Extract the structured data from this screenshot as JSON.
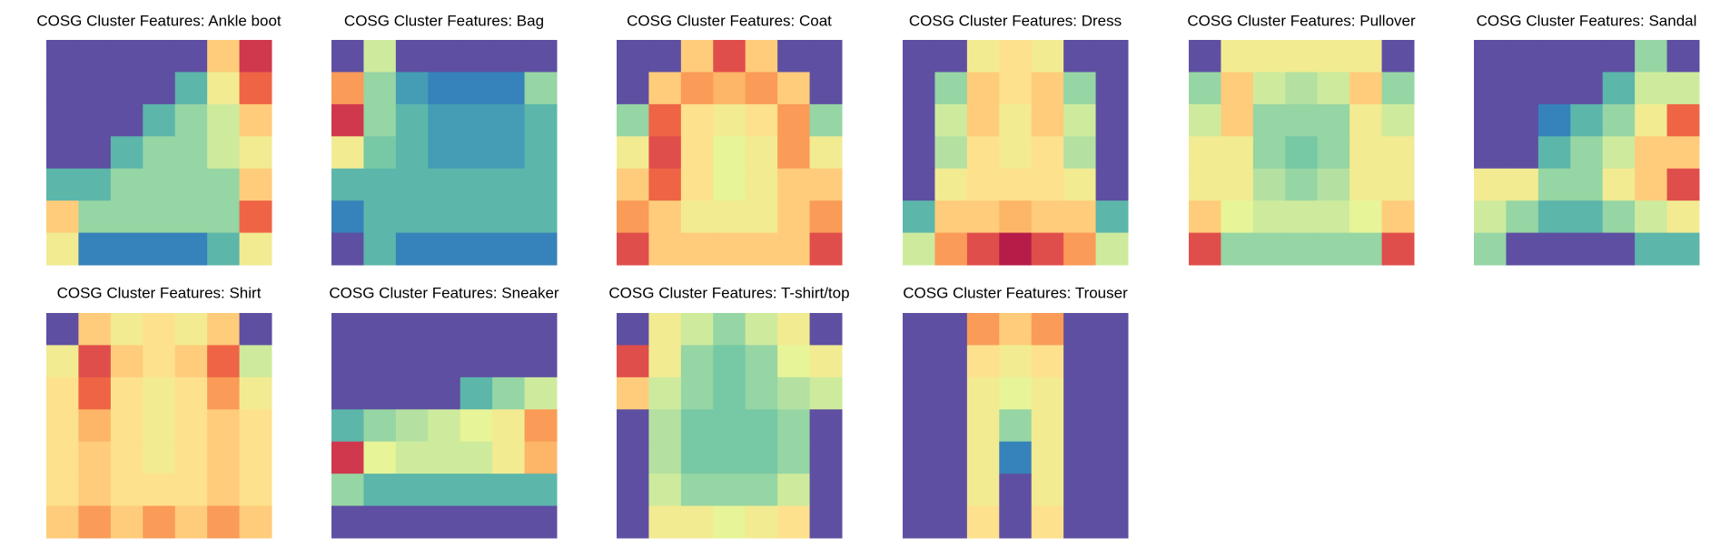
{
  "chart_data": [
    {
      "type": "heatmap",
      "title": "COSG Cluster Features: Ankle boot",
      "zlim": [
        0,
        1
      ],
      "colormap": [
        "#5e4fa2",
        "#3288bd",
        "#66c2a5",
        "#abdda4",
        "#e6f598",
        "#fee08b",
        "#fdae61",
        "#f46d43",
        "#d53e4f",
        "#9e0142"
      ],
      "z": [
        [
          0,
          0,
          0,
          0,
          0,
          0.6,
          0.9
        ],
        [
          0,
          0,
          0,
          0,
          0.2,
          0.5,
          0.8
        ],
        [
          0,
          0,
          0,
          0.2,
          0.3,
          0.4,
          0.6
        ],
        [
          0,
          0,
          0.2,
          0.3,
          0.3,
          0.4,
          0.5
        ],
        [
          0.2,
          0.2,
          0.3,
          0.3,
          0.3,
          0.3,
          0.6
        ],
        [
          0.6,
          0.3,
          0.3,
          0.3,
          0.3,
          0.3,
          0.8
        ],
        [
          0.5,
          0.1,
          0.1,
          0.1,
          0.1,
          0.2,
          0.5
        ]
      ]
    },
    {
      "type": "heatmap",
      "title": "COSG Cluster Features: Bag",
      "zlim": [
        0,
        1
      ],
      "colormap": [
        "#5e4fa2",
        "#3288bd",
        "#66c2a5",
        "#abdda4",
        "#e6f598",
        "#fee08b",
        "#fdae61",
        "#f46d43",
        "#d53e4f",
        "#9e0142"
      ],
      "z": [
        [
          0,
          0.4,
          0,
          0,
          0,
          0,
          0
        ],
        [
          0.7,
          0.3,
          0.15,
          0.1,
          0.1,
          0.1,
          0.3
        ],
        [
          0.9,
          0.3,
          0.2,
          0.15,
          0.15,
          0.15,
          0.2
        ],
        [
          0.5,
          0.25,
          0.2,
          0.15,
          0.15,
          0.15,
          0.2
        ],
        [
          0.2,
          0.2,
          0.2,
          0.2,
          0.2,
          0.2,
          0.2
        ],
        [
          0.1,
          0.2,
          0.2,
          0.2,
          0.2,
          0.2,
          0.2
        ],
        [
          0,
          0.2,
          0.1,
          0.1,
          0.1,
          0.1,
          0.1
        ]
      ]
    },
    {
      "type": "heatmap",
      "title": "COSG Cluster Features: Coat",
      "zlim": [
        0,
        1
      ],
      "colormap": [
        "#5e4fa2",
        "#3288bd",
        "#66c2a5",
        "#abdda4",
        "#e6f598",
        "#fee08b",
        "#fdae61",
        "#f46d43",
        "#d53e4f",
        "#9e0142"
      ],
      "z": [
        [
          0,
          0,
          0.6,
          0.85,
          0.6,
          0,
          0
        ],
        [
          0,
          0.6,
          0.7,
          0.65,
          0.7,
          0.6,
          0
        ],
        [
          0.3,
          0.8,
          0.55,
          0.5,
          0.55,
          0.7,
          0.3
        ],
        [
          0.5,
          0.85,
          0.55,
          0.45,
          0.5,
          0.7,
          0.5
        ],
        [
          0.6,
          0.8,
          0.55,
          0.45,
          0.5,
          0.6,
          0.6
        ],
        [
          0.7,
          0.6,
          0.5,
          0.5,
          0.5,
          0.6,
          0.7
        ],
        [
          0.85,
          0.6,
          0.6,
          0.6,
          0.6,
          0.6,
          0.85
        ]
      ]
    },
    {
      "type": "heatmap",
      "title": "COSG Cluster Features: Dress",
      "zlim": [
        0,
        1
      ],
      "colormap": [
        "#5e4fa2",
        "#3288bd",
        "#66c2a5",
        "#abdda4",
        "#e6f598",
        "#fee08b",
        "#fdae61",
        "#f46d43",
        "#d53e4f",
        "#9e0142"
      ],
      "z": [
        [
          0,
          0,
          0.5,
          0.55,
          0.5,
          0,
          0
        ],
        [
          0,
          0.3,
          0.6,
          0.55,
          0.6,
          0.3,
          0
        ],
        [
          0,
          0.4,
          0.6,
          0.5,
          0.6,
          0.4,
          0
        ],
        [
          0,
          0.35,
          0.55,
          0.5,
          0.55,
          0.35,
          0
        ],
        [
          0,
          0.5,
          0.55,
          0.55,
          0.55,
          0.5,
          0
        ],
        [
          0.2,
          0.6,
          0.6,
          0.65,
          0.6,
          0.6,
          0.2
        ],
        [
          0.4,
          0.7,
          0.85,
          0.95,
          0.85,
          0.7,
          0.4
        ]
      ]
    },
    {
      "type": "heatmap",
      "title": "COSG Cluster Features: Pullover",
      "zlim": [
        0,
        1
      ],
      "colormap": [
        "#5e4fa2",
        "#3288bd",
        "#66c2a5",
        "#abdda4",
        "#e6f598",
        "#fee08b",
        "#fdae61",
        "#f46d43",
        "#d53e4f",
        "#9e0142"
      ],
      "z": [
        [
          0,
          0.5,
          0.5,
          0.5,
          0.5,
          0.5,
          0
        ],
        [
          0.3,
          0.6,
          0.4,
          0.35,
          0.4,
          0.6,
          0.3
        ],
        [
          0.4,
          0.6,
          0.3,
          0.3,
          0.3,
          0.5,
          0.4
        ],
        [
          0.5,
          0.5,
          0.3,
          0.25,
          0.3,
          0.5,
          0.5
        ],
        [
          0.5,
          0.5,
          0.35,
          0.3,
          0.35,
          0.5,
          0.5
        ],
        [
          0.6,
          0.45,
          0.4,
          0.4,
          0.4,
          0.45,
          0.6
        ],
        [
          0.85,
          0.3,
          0.3,
          0.3,
          0.3,
          0.3,
          0.85
        ]
      ]
    },
    {
      "type": "heatmap",
      "title": "COSG Cluster Features: Sandal",
      "zlim": [
        0,
        1
      ],
      "colormap": [
        "#5e4fa2",
        "#3288bd",
        "#66c2a5",
        "#abdda4",
        "#e6f598",
        "#fee08b",
        "#fdae61",
        "#f46d43",
        "#d53e4f",
        "#9e0142"
      ],
      "z": [
        [
          0,
          0,
          0,
          0,
          0,
          0.3,
          0
        ],
        [
          0,
          0,
          0,
          0,
          0.2,
          0.4,
          0.4
        ],
        [
          0,
          0,
          0.1,
          0.2,
          0.3,
          0.5,
          0.8
        ],
        [
          0,
          0,
          0.2,
          0.3,
          0.4,
          0.6,
          0.6
        ],
        [
          0.5,
          0.5,
          0.3,
          0.3,
          0.5,
          0.6,
          0.85
        ],
        [
          0.4,
          0.3,
          0.2,
          0.2,
          0.3,
          0.4,
          0.5
        ],
        [
          0.3,
          0,
          0,
          0,
          0,
          0.2,
          0.2
        ]
      ]
    },
    {
      "type": "heatmap",
      "title": "COSG Cluster Features: Shirt",
      "zlim": [
        0,
        1
      ],
      "colormap": [
        "#5e4fa2",
        "#3288bd",
        "#66c2a5",
        "#abdda4",
        "#e6f598",
        "#fee08b",
        "#fdae61",
        "#f46d43",
        "#d53e4f",
        "#9e0142"
      ],
      "z": [
        [
          0,
          0.6,
          0.5,
          0.55,
          0.5,
          0.6,
          0
        ],
        [
          0.5,
          0.85,
          0.6,
          0.55,
          0.6,
          0.8,
          0.4
        ],
        [
          0.55,
          0.8,
          0.55,
          0.5,
          0.55,
          0.7,
          0.5
        ],
        [
          0.55,
          0.65,
          0.55,
          0.5,
          0.55,
          0.6,
          0.55
        ],
        [
          0.55,
          0.6,
          0.55,
          0.5,
          0.55,
          0.6,
          0.55
        ],
        [
          0.55,
          0.6,
          0.55,
          0.55,
          0.55,
          0.6,
          0.55
        ],
        [
          0.6,
          0.7,
          0.6,
          0.7,
          0.6,
          0.7,
          0.6
        ]
      ]
    },
    {
      "type": "heatmap",
      "title": "COSG Cluster Features: Sneaker",
      "zlim": [
        0,
        1
      ],
      "colormap": [
        "#5e4fa2",
        "#3288bd",
        "#66c2a5",
        "#abdda4",
        "#e6f598",
        "#fee08b",
        "#fdae61",
        "#f46d43",
        "#d53e4f",
        "#9e0142"
      ],
      "z": [
        [
          0,
          0,
          0,
          0,
          0,
          0,
          0
        ],
        [
          0,
          0,
          0,
          0,
          0,
          0,
          0
        ],
        [
          0,
          0,
          0,
          0,
          0.2,
          0.3,
          0.4
        ],
        [
          0.2,
          0.3,
          0.35,
          0.4,
          0.45,
          0.5,
          0.7
        ],
        [
          0.9,
          0.45,
          0.4,
          0.4,
          0.4,
          0.5,
          0.65
        ],
        [
          0.3,
          0.2,
          0.2,
          0.2,
          0.2,
          0.2,
          0.2
        ],
        [
          0,
          0,
          0,
          0,
          0,
          0,
          0
        ]
      ]
    },
    {
      "type": "heatmap",
      "title": "COSG Cluster Features: T-shirt/top",
      "zlim": [
        0,
        1
      ],
      "colormap": [
        "#5e4fa2",
        "#3288bd",
        "#66c2a5",
        "#abdda4",
        "#e6f598",
        "#fee08b",
        "#fdae61",
        "#f46d43",
        "#d53e4f",
        "#9e0142"
      ],
      "z": [
        [
          0,
          0.5,
          0.4,
          0.3,
          0.4,
          0.5,
          0
        ],
        [
          0.85,
          0.5,
          0.3,
          0.25,
          0.3,
          0.45,
          0.5
        ],
        [
          0.6,
          0.4,
          0.3,
          0.25,
          0.3,
          0.35,
          0.4
        ],
        [
          0,
          0.35,
          0.25,
          0.25,
          0.25,
          0.3,
          0
        ],
        [
          0,
          0.35,
          0.25,
          0.25,
          0.25,
          0.3,
          0
        ],
        [
          0,
          0.4,
          0.3,
          0.3,
          0.3,
          0.4,
          0
        ],
        [
          0,
          0.5,
          0.5,
          0.45,
          0.5,
          0.55,
          0
        ]
      ]
    },
    {
      "type": "heatmap",
      "title": "COSG Cluster Features: Trouser",
      "zlim": [
        0,
        1
      ],
      "colormap": [
        "#5e4fa2",
        "#3288bd",
        "#66c2a5",
        "#abdda4",
        "#e6f598",
        "#fee08b",
        "#fdae61",
        "#f46d43",
        "#d53e4f",
        "#9e0142"
      ],
      "z": [
        [
          0,
          0,
          0.7,
          0.6,
          0.7,
          0,
          0
        ],
        [
          0,
          0,
          0.55,
          0.5,
          0.55,
          0,
          0
        ],
        [
          0,
          0,
          0.5,
          0.45,
          0.5,
          0,
          0
        ],
        [
          0,
          0,
          0.5,
          0.3,
          0.5,
          0,
          0
        ],
        [
          0,
          0,
          0.5,
          0.1,
          0.5,
          0,
          0
        ],
        [
          0,
          0,
          0.5,
          0,
          0.5,
          0,
          0
        ],
        [
          0,
          0,
          0.55,
          0,
          0.55,
          0,
          0
        ]
      ]
    }
  ]
}
